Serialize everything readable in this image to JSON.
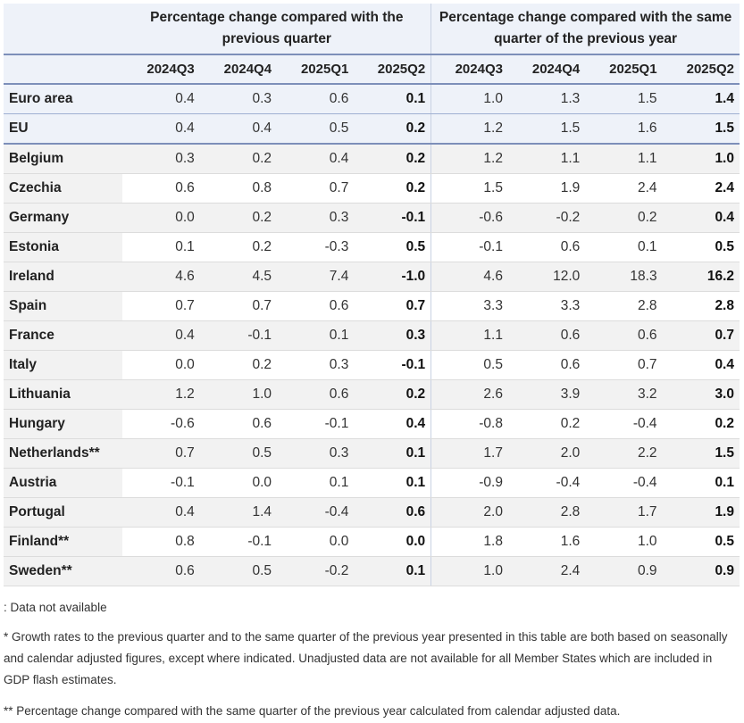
{
  "table": {
    "group_headers": [
      "Percentage change compared with the previous quarter",
      "Percentage change compared with the same quarter of the previous year"
    ],
    "columns": [
      "2024Q3",
      "2024Q4",
      "2025Q1",
      "2025Q2",
      "2024Q3",
      "2024Q4",
      "2025Q1",
      "2025Q2"
    ],
    "rows": [
      {
        "country": "Euro area",
        "values": [
          "0.4",
          "0.3",
          "0.6",
          "0.1",
          "1.0",
          "1.3",
          "1.5",
          "1.4"
        ]
      },
      {
        "country": "EU",
        "values": [
          "0.4",
          "0.4",
          "0.5",
          "0.2",
          "1.2",
          "1.5",
          "1.6",
          "1.5"
        ]
      },
      {
        "country": "Belgium",
        "values": [
          "0.3",
          "0.2",
          "0.4",
          "0.2",
          "1.2",
          "1.1",
          "1.1",
          "1.0"
        ]
      },
      {
        "country": "Czechia",
        "values": [
          "0.6",
          "0.8",
          "0.7",
          "0.2",
          "1.5",
          "1.9",
          "2.4",
          "2.4"
        ]
      },
      {
        "country": "Germany",
        "values": [
          "0.0",
          "0.2",
          "0.3",
          "-0.1",
          "-0.6",
          "-0.2",
          "0.2",
          "0.4"
        ]
      },
      {
        "country": "Estonia",
        "values": [
          "0.1",
          "0.2",
          "-0.3",
          "0.5",
          "-0.1",
          "0.6",
          "0.1",
          "0.5"
        ]
      },
      {
        "country": "Ireland",
        "values": [
          "4.6",
          "4.5",
          "7.4",
          "-1.0",
          "4.6",
          "12.0",
          "18.3",
          "16.2"
        ]
      },
      {
        "country": "Spain",
        "values": [
          "0.7",
          "0.7",
          "0.6",
          "0.7",
          "3.3",
          "3.3",
          "2.8",
          "2.8"
        ]
      },
      {
        "country": "France",
        "values": [
          "0.4",
          "-0.1",
          "0.1",
          "0.3",
          "1.1",
          "0.6",
          "0.6",
          "0.7"
        ]
      },
      {
        "country": "Italy",
        "values": [
          "0.0",
          "0.2",
          "0.3",
          "-0.1",
          "0.5",
          "0.6",
          "0.7",
          "0.4"
        ]
      },
      {
        "country": "Lithuania",
        "values": [
          "1.2",
          "1.0",
          "0.6",
          "0.2",
          "2.6",
          "3.9",
          "3.2",
          "3.0"
        ]
      },
      {
        "country": "Hungary",
        "values": [
          "-0.6",
          "0.6",
          "-0.1",
          "0.4",
          "-0.8",
          "0.2",
          "-0.4",
          "0.2"
        ]
      },
      {
        "country": "Netherlands**",
        "values": [
          "0.7",
          "0.5",
          "0.3",
          "0.1",
          "1.7",
          "2.0",
          "2.2",
          "1.5"
        ]
      },
      {
        "country": "Austria",
        "values": [
          "-0.1",
          "0.0",
          "0.1",
          "0.1",
          "-0.9",
          "-0.4",
          "-0.4",
          "0.1"
        ]
      },
      {
        "country": "Portugal",
        "values": [
          "0.4",
          "1.4",
          "-0.4",
          "0.6",
          "2.0",
          "2.8",
          "1.7",
          "1.9"
        ]
      },
      {
        "country": "Finland**",
        "values": [
          "0.8",
          "-0.1",
          "0.0",
          "0.0",
          "1.8",
          "1.6",
          "1.0",
          "0.5"
        ]
      },
      {
        "country": "Sweden**",
        "values": [
          "0.6",
          "0.5",
          "-0.2",
          "0.1",
          "1.0",
          "2.4",
          "0.9",
          "0.9"
        ]
      }
    ]
  },
  "notes": {
    "not_available": ": Data not available",
    "single_star": "* Growth rates to the previous quarter and to the same quarter of the previous year presented in this table are both based on seasonally and calendar adjusted figures, except where indicated. Unadjusted data are not available for all Member States which are included in GDP flash estimates.",
    "double_star": "** Percentage change compared with the same quarter of the previous year calculated from calendar adjusted data."
  }
}
